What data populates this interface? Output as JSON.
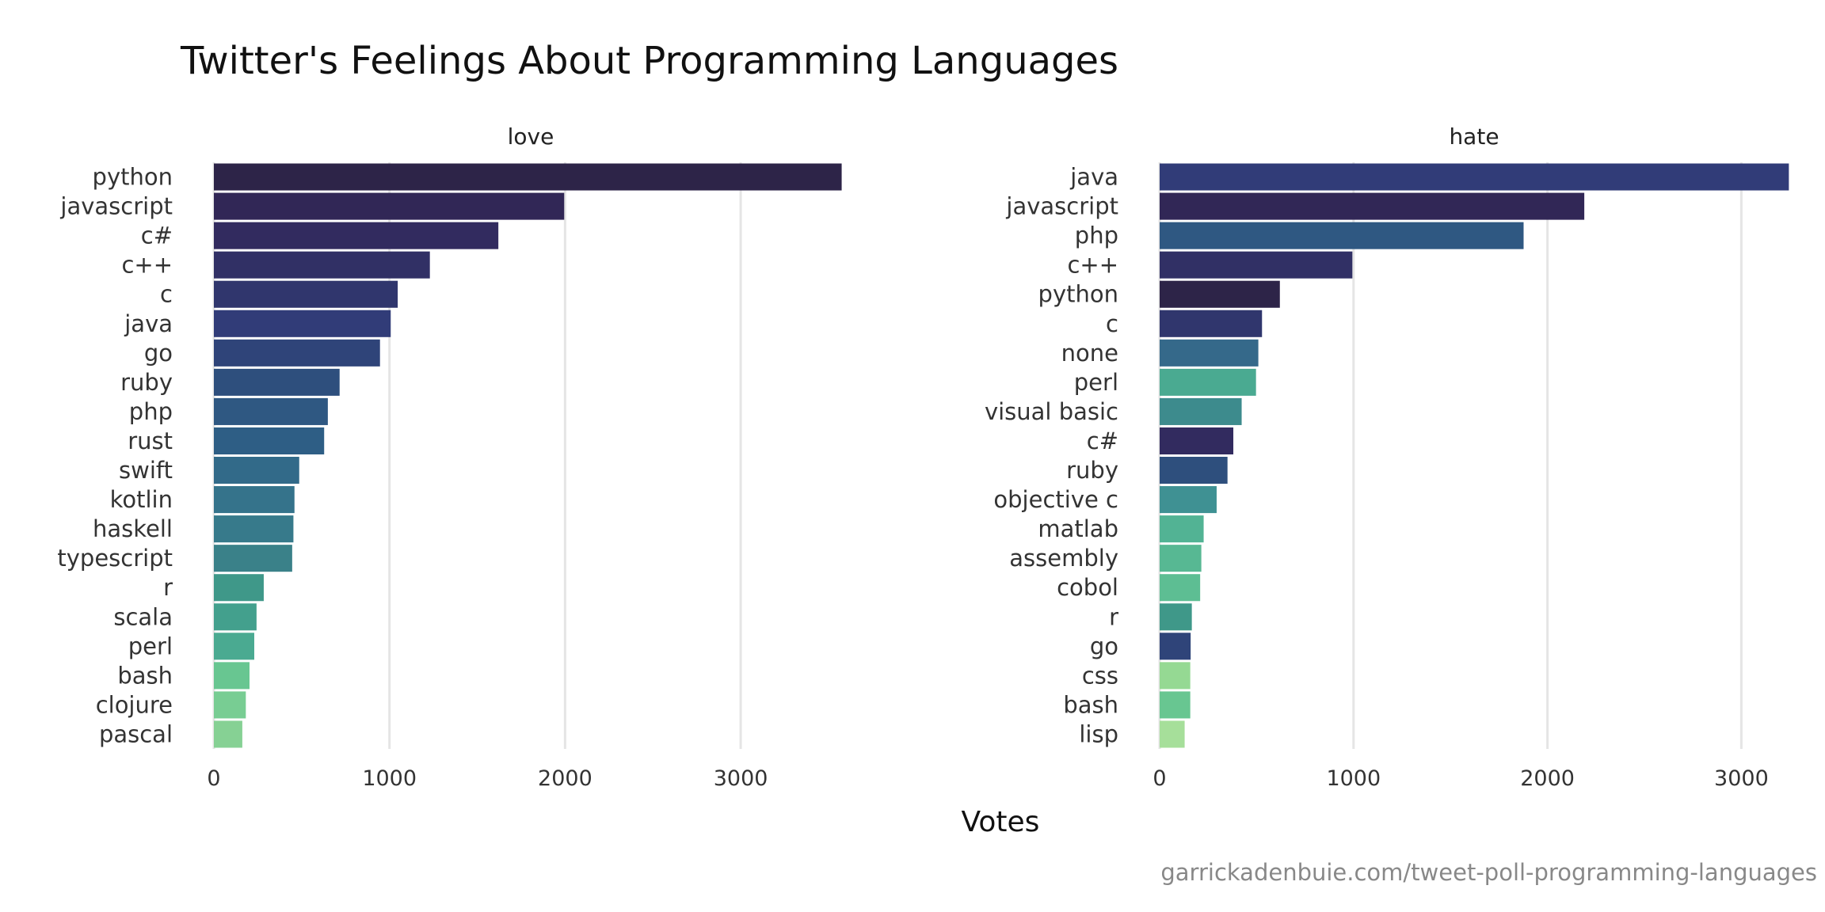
{
  "chart_data": [
    {
      "type": "bar",
      "orientation": "horizontal",
      "title": "Twitter's Feelings About Programming Languages",
      "panel": "love",
      "xlabel": "Votes",
      "xlim": [
        0,
        3600
      ],
      "xticks": [
        0,
        1000,
        2000,
        3000
      ],
      "grid": true,
      "categories": [
        "python",
        "javascript",
        "c#",
        "c++",
        "c",
        "java",
        "go",
        "ruby",
        "php",
        "rust",
        "swift",
        "kotlin",
        "haskell",
        "typescript",
        "r",
        "scala",
        "perl",
        "bash",
        "clojure",
        "pascal"
      ],
      "values": [
        3575,
        1995,
        1620,
        1230,
        1047,
        1007,
        946,
        716,
        649,
        628,
        486,
        459,
        453,
        446,
        284,
        243,
        230,
        203,
        182,
        162
      ]
    },
    {
      "type": "bar",
      "orientation": "horizontal",
      "panel": "hate",
      "xlabel": "Votes",
      "xlim": [
        0,
        3250
      ],
      "xticks": [
        0,
        1000,
        2000,
        3000
      ],
      "grid": true,
      "categories": [
        "java",
        "javascript",
        "php",
        "c++",
        "python",
        "c",
        "none",
        "perl",
        "visual basic",
        "c#",
        "ruby",
        "objective c",
        "matlab",
        "assembly",
        "cobol",
        "r",
        "go",
        "css",
        "bash",
        "lisp"
      ],
      "values": [
        3245,
        2190,
        1877,
        994,
        620,
        528,
        509,
        497,
        423,
        380,
        350,
        294,
        227,
        215,
        209,
        166,
        160,
        158,
        158,
        129
      ]
    }
  ],
  "title": "Twitter's Feelings About Programming Languages",
  "xlabel": "Votes",
  "caption": "garrickadenbuie.com/tweet-poll-programming-languages",
  "colors": {
    "python": "#2d2448",
    "javascript": "#312756",
    "c#": "#322b5f",
    "c++": "#313065",
    "c": "#30366d",
    "java": "#313c78",
    "go": "#2f4479",
    "ruby": "#2e4f7d",
    "php": "#2f5882",
    "rust": "#2e5e85",
    "swift": "#326a89",
    "kotlin": "#35738b",
    "haskell": "#377a8b",
    "typescript": "#3a8189",
    "r": "#3f9889",
    "scala": "#43a08d",
    "perl": "#4aaa91",
    "bash": "#68c691",
    "clojure": "#78cd93",
    "pascal": "#86d194",
    "none": "#35698a",
    "visual basic": "#3d8b8d",
    "objective c": "#3f9193",
    "matlab": "#52b394",
    "assembly": "#57b893",
    "cobol": "#5dbe93",
    "css": "#95d993",
    "lisp": "#a6df9a"
  },
  "grid_color": "#e5e5e5"
}
